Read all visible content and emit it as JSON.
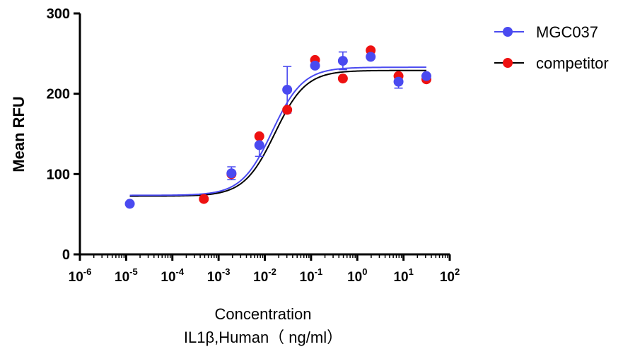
{
  "chart_data": {
    "type": "scatter",
    "xscale": "log",
    "xlim": [
      1e-06,
      100
    ],
    "ylim": [
      0,
      300
    ],
    "ylabel": "Mean RFU",
    "xlabel": "Concentration",
    "xlabel_line2": "IL1β,Human（ ng/ml）",
    "y_ticks": [
      0,
      100,
      200,
      300
    ],
    "x_ticks": [
      {
        "base": "10",
        "exp": "-6",
        "value": 1e-06
      },
      {
        "base": "10",
        "exp": "-5",
        "value": 1e-05
      },
      {
        "base": "10",
        "exp": "-4",
        "value": 0.0001
      },
      {
        "base": "10",
        "exp": "-3",
        "value": 0.001
      },
      {
        "base": "10",
        "exp": "-2",
        "value": 0.01
      },
      {
        "base": "10",
        "exp": "-1",
        "value": 0.1
      },
      {
        "base": "10",
        "exp": "0",
        "value": 1
      },
      {
        "base": "10",
        "exp": "1",
        "value": 10
      },
      {
        "base": "10",
        "exp": "2",
        "value": 100
      }
    ],
    "legend_position": "top-right",
    "series": [
      {
        "name": "MGC037",
        "color": "#4a4af0",
        "curve_color": "#4a4af0",
        "points": [
          {
            "x": 1.2e-05,
            "y": 63
          },
          {
            "x": 0.0019,
            "y": 101,
            "err": 8
          },
          {
            "x": 0.0076,
            "y": 136,
            "err": 14
          },
          {
            "x": 0.0305,
            "y": 205,
            "err": 29
          },
          {
            "x": 0.122,
            "y": 235,
            "err": 3
          },
          {
            "x": 0.488,
            "y": 241,
            "err": 11
          },
          {
            "x": 1.95,
            "y": 246
          },
          {
            "x": 7.8,
            "y": 215,
            "err": 8
          },
          {
            "x": 31.25,
            "y": 222
          }
        ],
        "fit": {
          "bottom": 73.5,
          "top": 233,
          "ec50": 0.0145,
          "hill": 1.3
        }
      },
      {
        "name": "competitor",
        "color": "#ee1111",
        "curve_color": "#000000",
        "points": [
          {
            "x": 0.00048,
            "y": 69
          },
          {
            "x": 0.0019,
            "y": 100
          },
          {
            "x": 0.0076,
            "y": 147
          },
          {
            "x": 0.0305,
            "y": 180
          },
          {
            "x": 0.122,
            "y": 242
          },
          {
            "x": 0.488,
            "y": 219
          },
          {
            "x": 1.95,
            "y": 254
          },
          {
            "x": 7.8,
            "y": 222
          },
          {
            "x": 31.25,
            "y": 218
          }
        ],
        "fit": {
          "bottom": 72.5,
          "top": 229,
          "ec50": 0.0165,
          "hill": 1.3
        }
      }
    ]
  }
}
